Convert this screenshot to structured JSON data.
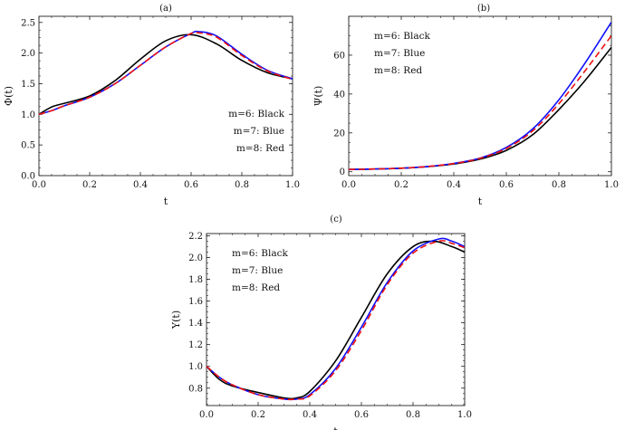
{
  "figure": {
    "panels": [
      "a",
      "b",
      "c"
    ]
  },
  "chart_data": [
    {
      "id": "a",
      "type": "line",
      "title": "(a)",
      "xlabel": "t",
      "ylabel": "Φ(t)",
      "xlim": [
        0,
        1
      ],
      "ylim": [
        0,
        2.6
      ],
      "xticks": [
        0.0,
        0.2,
        0.4,
        0.6,
        0.8,
        1.0
      ],
      "xtick_labels": [
        "0.0",
        "0.2",
        "0.4",
        "0.6",
        "0.8",
        "1.0"
      ],
      "yticks": [
        0.0,
        0.5,
        1.0,
        1.5,
        2.0,
        2.5
      ],
      "ytick_labels": [
        "0.0",
        "0.5",
        "1.0",
        "1.5",
        "2.0",
        "2.5"
      ],
      "legend_position": "bottom-right",
      "legend": [
        "m=6:  Black",
        "m=7:  Blue",
        "m=8:  Red"
      ],
      "series": [
        {
          "name": "m=6",
          "color": "#000000",
          "dash": "solid",
          "x": [
            0,
            0.05,
            0.1,
            0.2,
            0.3,
            0.4,
            0.5,
            0.6,
            0.7,
            0.8,
            0.9,
            1.0
          ],
          "y": [
            1.0,
            1.12,
            1.18,
            1.3,
            1.55,
            1.9,
            2.2,
            2.3,
            2.15,
            1.88,
            1.68,
            1.58
          ]
        },
        {
          "name": "m=7",
          "color": "#1010ff",
          "dash": "solid",
          "x": [
            0,
            0.05,
            0.1,
            0.2,
            0.3,
            0.4,
            0.5,
            0.6,
            0.63,
            0.7,
            0.8,
            0.9,
            1.0
          ],
          "y": [
            1.0,
            1.06,
            1.14,
            1.28,
            1.5,
            1.8,
            2.1,
            2.32,
            2.35,
            2.28,
            1.98,
            1.72,
            1.58
          ]
        },
        {
          "name": "m=8",
          "color": "#ee1111",
          "dash": "dashed",
          "x": [
            0,
            0.05,
            0.1,
            0.2,
            0.3,
            0.4,
            0.5,
            0.6,
            0.63,
            0.7,
            0.8,
            0.9,
            1.0
          ],
          "y": [
            1.0,
            1.06,
            1.14,
            1.28,
            1.5,
            1.8,
            2.1,
            2.32,
            2.33,
            2.26,
            1.96,
            1.71,
            1.57
          ]
        }
      ]
    },
    {
      "id": "b",
      "type": "line",
      "title": "(b)",
      "xlabel": "t",
      "ylabel": "Ψ(t)",
      "xlim": [
        0,
        1
      ],
      "ylim": [
        -2,
        80
      ],
      "xticks": [
        0.0,
        0.2,
        0.4,
        0.6,
        0.8,
        1.0
      ],
      "xtick_labels": [
        "0.0",
        "0.2",
        "0.4",
        "0.6",
        "0.8",
        "1.0"
      ],
      "yticks": [
        0,
        20,
        40,
        60
      ],
      "ytick_labels": [
        "0",
        "20",
        "40",
        "60"
      ],
      "legend_position": "top-left",
      "legend": [
        "m=6: Black",
        "m=7: Blue",
        "m=8: Red"
      ],
      "series": [
        {
          "name": "m=6",
          "color": "#000000",
          "dash": "solid",
          "x": [
            0,
            0.1,
            0.2,
            0.3,
            0.4,
            0.5,
            0.6,
            0.7,
            0.8,
            0.9,
            1.0
          ],
          "y": [
            1.2,
            1.4,
            1.8,
            2.6,
            4.0,
            6.5,
            11.0,
            19.0,
            32.0,
            47.0,
            64.0
          ]
        },
        {
          "name": "m=7",
          "color": "#1010ff",
          "dash": "solid",
          "x": [
            0,
            0.1,
            0.2,
            0.3,
            0.4,
            0.5,
            0.6,
            0.7,
            0.8,
            0.9,
            1.0
          ],
          "y": [
            1.2,
            1.4,
            1.8,
            2.7,
            4.3,
            7.0,
            12.5,
            22.0,
            37.0,
            56.0,
            77.0
          ]
        },
        {
          "name": "m=8",
          "color": "#ee1111",
          "dash": "dashed",
          "x": [
            0,
            0.1,
            0.2,
            0.3,
            0.4,
            0.5,
            0.6,
            0.7,
            0.8,
            0.9,
            1.0
          ],
          "y": [
            1.2,
            1.4,
            1.8,
            2.7,
            4.2,
            6.9,
            12.0,
            21.0,
            35.0,
            52.0,
            70.0
          ]
        }
      ]
    },
    {
      "id": "c",
      "type": "line",
      "title": "(c)",
      "xlabel": "t",
      "ylabel": "Υ(t)",
      "xlim": [
        0,
        1
      ],
      "ylim": [
        0.64,
        2.22
      ],
      "xticks": [
        0.0,
        0.2,
        0.4,
        0.6,
        0.8,
        1.0
      ],
      "xtick_labels": [
        "0.0",
        "0.2",
        "0.4",
        "0.6",
        "0.8",
        "1.0"
      ],
      "yticks": [
        0.8,
        1.0,
        1.2,
        1.4,
        1.6,
        1.8,
        2.0,
        2.2
      ],
      "ytick_labels": [
        "0.8",
        "1.0",
        "1.2",
        "1.4",
        "1.6",
        "1.8",
        "2.0",
        "2.2"
      ],
      "legend_position": "top-left",
      "legend": [
        "m=6: Black",
        "m=7: Blue",
        "m=8: Red"
      ],
      "series": [
        {
          "name": "m=6",
          "color": "#000000",
          "dash": "solid",
          "x": [
            0,
            0.05,
            0.1,
            0.2,
            0.3,
            0.35,
            0.4,
            0.5,
            0.6,
            0.7,
            0.8,
            0.88,
            0.95,
            1.0
          ],
          "y": [
            1.0,
            0.88,
            0.82,
            0.76,
            0.71,
            0.71,
            0.77,
            1.05,
            1.45,
            1.85,
            2.1,
            2.15,
            2.1,
            2.05
          ]
        },
        {
          "name": "m=7",
          "color": "#1010ff",
          "dash": "solid",
          "x": [
            0,
            0.05,
            0.1,
            0.2,
            0.3,
            0.35,
            0.4,
            0.5,
            0.6,
            0.7,
            0.8,
            0.9,
            0.95,
            1.0
          ],
          "y": [
            1.0,
            0.9,
            0.83,
            0.74,
            0.7,
            0.7,
            0.74,
            0.98,
            1.36,
            1.77,
            2.06,
            2.17,
            2.15,
            2.1
          ]
        },
        {
          "name": "m=8",
          "color": "#ee1111",
          "dash": "dashed",
          "x": [
            0,
            0.05,
            0.1,
            0.2,
            0.3,
            0.35,
            0.4,
            0.5,
            0.6,
            0.7,
            0.8,
            0.9,
            0.95,
            1.0
          ],
          "y": [
            1.0,
            0.9,
            0.83,
            0.74,
            0.7,
            0.7,
            0.73,
            0.96,
            1.33,
            1.75,
            2.04,
            2.15,
            2.13,
            2.09
          ]
        }
      ]
    }
  ]
}
